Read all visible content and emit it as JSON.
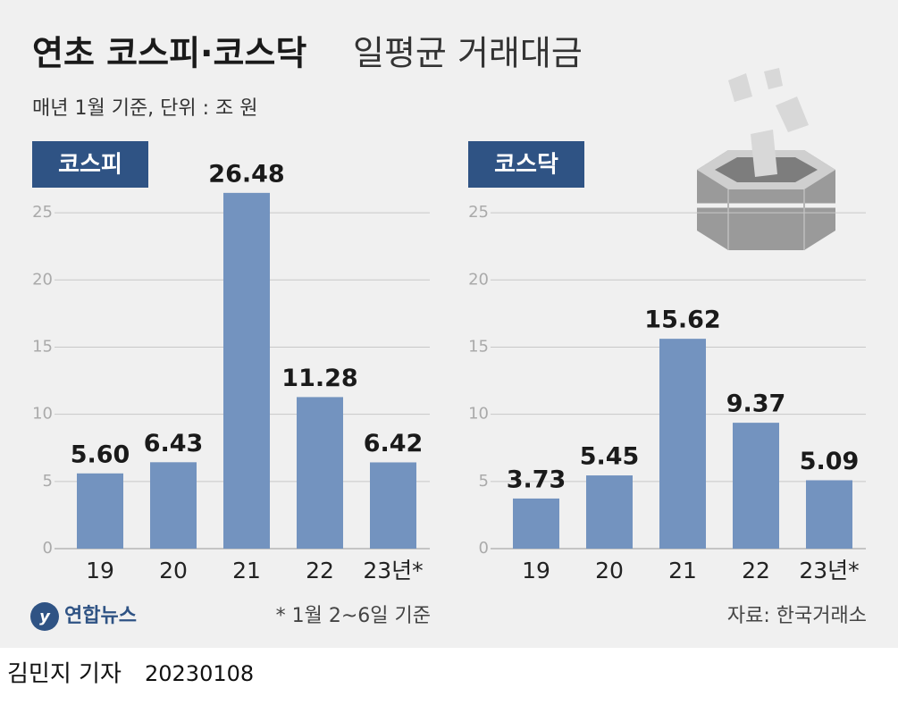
{
  "title_bold": "연초 코스피·코스닥",
  "title_light": "일평균 거래대금",
  "subtitle": "매년 1월 기준, 단위 : 조 원",
  "footnote": "* 1월 2~6일 기준",
  "source": "자료: 한국거래소",
  "logo": "연합뉴스",
  "byline": "김민지 기자",
  "date": "20230108",
  "chart_data": [
    {
      "type": "bar",
      "title": "코스피",
      "categories": [
        "19",
        "20",
        "21",
        "22",
        "23년*"
      ],
      "values": [
        5.6,
        6.43,
        26.48,
        11.28,
        6.42
      ],
      "value_labels": [
        "5.60",
        "6.43",
        "26.48",
        "11.28",
        "6.42"
      ],
      "color": "#7393bf",
      "ylim": [
        0,
        28
      ],
      "yticks": [
        0,
        5,
        10,
        15,
        20,
        25
      ],
      "grid": true
    },
    {
      "type": "bar",
      "title": "코스닥",
      "categories": [
        "19",
        "20",
        "21",
        "22",
        "23년*"
      ],
      "values": [
        3.73,
        5.45,
        15.62,
        9.37,
        5.09
      ],
      "value_labels": [
        "3.73",
        "5.45",
        "15.62",
        "9.37",
        "5.09"
      ],
      "color": "#7393bf",
      "ylim": [
        0,
        28
      ],
      "yticks": [
        0,
        5,
        10,
        15,
        20,
        25
      ],
      "grid": true
    }
  ]
}
